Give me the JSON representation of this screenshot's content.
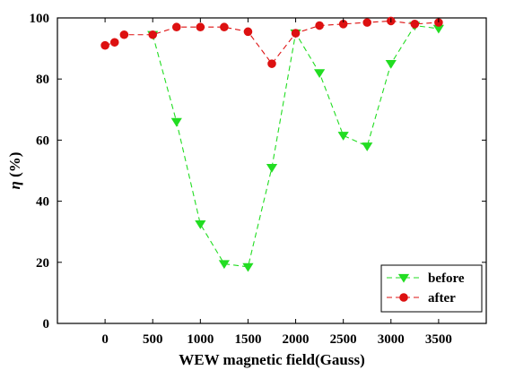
{
  "chart_data": {
    "type": "line",
    "xlabel": "WEW magnetic field(Gauss)",
    "ylabel_symbol": "η",
    "ylabel_unit": " (%)",
    "xlim": [
      -500,
      4000
    ],
    "ylim": [
      0,
      100
    ],
    "xticks": [
      0,
      500,
      1000,
      1500,
      2000,
      2500,
      3000,
      3500
    ],
    "yticks": [
      0,
      20,
      40,
      60,
      80,
      100
    ],
    "grid": false,
    "legend_position": "bottom-right",
    "series": [
      {
        "name": "before",
        "color": "#22dd22",
        "marker": "triangle-down",
        "line_style": "dashed",
        "x": [
          500,
          750,
          1000,
          1250,
          1500,
          1750,
          2000,
          2250,
          2500,
          2750,
          3000,
          3250,
          3500
        ],
        "y": [
          94.5,
          66,
          32.5,
          19.5,
          18.5,
          51,
          95,
          82,
          61.5,
          58,
          85,
          97.5,
          96.5
        ]
      },
      {
        "name": "after",
        "color": "#dd1111",
        "marker": "circle",
        "line_style": "dashed",
        "x": [
          0,
          100,
          200,
          500,
          750,
          1000,
          1250,
          1500,
          1750,
          2000,
          2250,
          2500,
          2750,
          3000,
          3250,
          3500
        ],
        "y": [
          91,
          92,
          94.5,
          94.5,
          97,
          97,
          97,
          95.5,
          85,
          95,
          97.5,
          98,
          98.5,
          99,
          98,
          98.5
        ]
      }
    ]
  }
}
